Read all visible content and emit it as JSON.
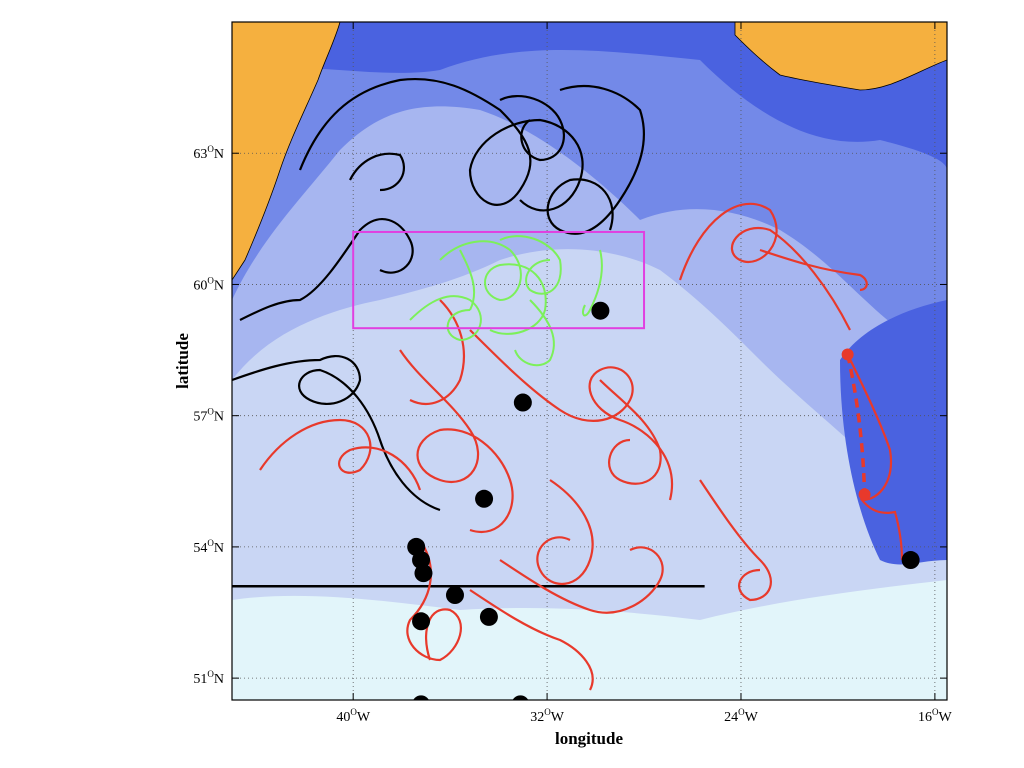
{
  "x_axis": {
    "label": "longitude",
    "ticks": [
      {
        "value": -40,
        "num": "40",
        "unit": "O",
        "dir": "W"
      },
      {
        "value": -32,
        "num": "32",
        "unit": "O",
        "dir": "W"
      },
      {
        "value": -24,
        "num": "24",
        "unit": "O",
        "dir": "W"
      },
      {
        "value": -16,
        "num": "16",
        "unit": "O",
        "dir": "W"
      }
    ],
    "range": [
      -45,
      -15.5
    ]
  },
  "y_axis": {
    "label": "latitude",
    "ticks": [
      {
        "value": 51,
        "num": "51",
        "unit": "O",
        "dir": "N"
      },
      {
        "value": 54,
        "num": "54",
        "unit": "O",
        "dir": "N"
      },
      {
        "value": 57,
        "num": "57",
        "unit": "O",
        "dir": "N"
      },
      {
        "value": 60,
        "num": "60",
        "unit": "O",
        "dir": "N"
      },
      {
        "value": 63,
        "num": "63",
        "unit": "O",
        "dir": "N"
      }
    ],
    "range": [
      50.5,
      66
    ]
  },
  "colors": {
    "land": "#f5b03f",
    "deep_ocean": "#4a62e0",
    "mid_ocean": "#7389e8",
    "shelf_ocean": "#a7b6f0",
    "shallow_ocean": "#c9d6f4",
    "very_shallow": "#e2f5fa",
    "red_tracks": "#e8392b",
    "black_tracks": "#000000",
    "green_tracks": "#7cf05a",
    "box": "#e040e0",
    "grid": "#555555"
  },
  "grid": "dotted",
  "study_box": {
    "lon": [
      -40,
      -28
    ],
    "lat": [
      59,
      61.2
    ]
  },
  "reference_line_lat": 53.1,
  "deployment_points": [
    {
      "lon": -33,
      "lat": 57.3
    },
    {
      "lon": -29.8,
      "lat": 59.4
    },
    {
      "lon": -34.6,
      "lat": 55.1
    },
    {
      "lon": -37.4,
      "lat": 54.0
    },
    {
      "lon": -37.2,
      "lat": 53.7
    },
    {
      "lon": -37.1,
      "lat": 53.4
    },
    {
      "lon": -35.8,
      "lat": 52.9
    },
    {
      "lon": -37.2,
      "lat": 52.3
    },
    {
      "lon": -34.4,
      "lat": 52.4
    },
    {
      "lon": -37.2,
      "lat": 50.4
    },
    {
      "lon": -33.1,
      "lat": 50.4
    },
    {
      "lon": -17.0,
      "lat": 53.7
    }
  ],
  "dashed_track": [
    {
      "lon": -19.6,
      "lat": 58.4
    },
    {
      "lon": -19.4,
      "lat": 56.9
    },
    {
      "lon": -18.9,
      "lat": 55.2
    }
  ]
}
